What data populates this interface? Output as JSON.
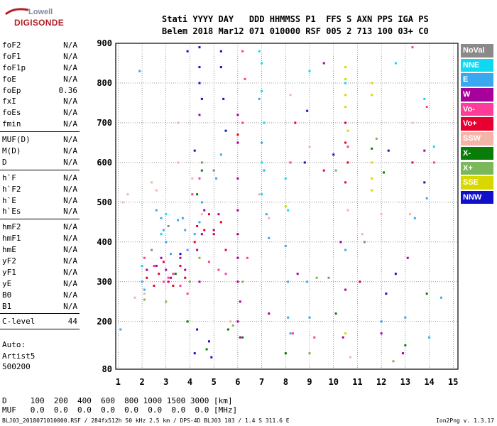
{
  "logo": {
    "top": "Lowell",
    "bottom": "DIGISONDE"
  },
  "header": {
    "line1": "Stati YYYY DAY   DDD HHMMSS P1  FFS S AXN PPS IGA PS",
    "line2": "Belem 2018 Mar12 071 010000 RSF 005 2 713 100 03+ C0"
  },
  "params": {
    "g1": [
      [
        "foF2",
        "N/A"
      ],
      [
        "foF1",
        "N/A"
      ],
      [
        "foF1p",
        "N/A"
      ],
      [
        "foE",
        "N/A"
      ],
      [
        "foEp",
        "0.36"
      ],
      [
        "fxI",
        "N/A"
      ],
      [
        "foEs",
        "N/A"
      ],
      [
        "fmin",
        "N/A"
      ]
    ],
    "g2": [
      [
        "MUF(D)",
        "N/A"
      ],
      [
        "M(D)",
        "N/A"
      ],
      [
        "D",
        "N/A"
      ]
    ],
    "g3": [
      [
        "h`F",
        "N/A"
      ],
      [
        "h`F2",
        "N/A"
      ],
      [
        "h`E",
        "N/A"
      ],
      [
        "h`Es",
        "N/A"
      ]
    ],
    "g4": [
      [
        "hmF2",
        "N/A"
      ],
      [
        "hmF1",
        "N/A"
      ],
      [
        "hmE",
        "N/A"
      ],
      [
        "yF2",
        "N/A"
      ],
      [
        "yF1",
        "N/A"
      ],
      [
        "yE",
        "N/A"
      ],
      [
        "B0",
        "N/A"
      ],
      [
        "B1",
        "N/A"
      ]
    ],
    "g5": [
      [
        "C-level",
        "44"
      ]
    ]
  },
  "auto": {
    "l1": "Auto:",
    "l2": "Artist5",
    "l3": "500200"
  },
  "legend": [
    {
      "label": "NoVal",
      "color": "#8a8a8a"
    },
    {
      "label": "NNE",
      "color": "#10d8f0"
    },
    {
      "label": "E",
      "color": "#3aa8f0"
    },
    {
      "label": "W",
      "color": "#a8009a"
    },
    {
      "label": "Vo-",
      "color": "#ff3c9a"
    },
    {
      "label": "Vo+",
      "color": "#e80030"
    },
    {
      "label": "SSW",
      "color": "#f4b4a8"
    },
    {
      "label": "X-",
      "color": "#0a7c0a"
    },
    {
      "label": "X+",
      "color": "#7ab85a"
    },
    {
      "label": "SSE",
      "color": "#d8d800"
    },
    {
      "label": "NNW",
      "color": "#1010c8"
    }
  ],
  "chart_data": {
    "type": "scatter",
    "title": "",
    "xlabel": "",
    "ylabel": "",
    "x_ticks": [
      "1",
      "2",
      "3",
      "4",
      "5",
      "6",
      "7",
      "8",
      "9",
      "10",
      "11",
      "12",
      "13",
      "14",
      "15"
    ],
    "y_ticks": [
      "80",
      "200",
      "300",
      "400",
      "500",
      "600",
      "700",
      "800",
      "900"
    ],
    "xlim": [
      0.9,
      15.2
    ],
    "ylim": [
      80,
      900
    ],
    "grid": true,
    "series": [
      {
        "name": "NNE",
        "color": "#10d8f0",
        "points": [
          [
            6.9,
            880
          ],
          [
            7.0,
            850
          ],
          [
            7.0,
            780
          ],
          [
            7.1,
            700
          ],
          [
            7.0,
            600
          ],
          [
            7.0,
            520
          ],
          [
            8.0,
            560
          ],
          [
            8.1,
            480
          ],
          [
            9.0,
            830
          ],
          [
            10.5,
            800
          ],
          [
            12.6,
            850
          ],
          [
            13.8,
            760
          ],
          [
            14.2,
            640
          ],
          [
            2.0,
            340
          ],
          [
            2.8,
            420
          ],
          [
            3.0,
            470
          ]
        ]
      },
      {
        "name": "E",
        "color": "#3aa8f0",
        "points": [
          [
            2.0,
            300
          ],
          [
            2.1,
            280
          ],
          [
            2.6,
            480
          ],
          [
            2.8,
            460
          ],
          [
            2.9,
            430
          ],
          [
            3.0,
            400
          ],
          [
            3.2,
            370
          ],
          [
            3.5,
            455
          ],
          [
            3.7,
            460
          ],
          [
            3.8,
            430
          ],
          [
            3.9,
            380
          ],
          [
            4.2,
            420
          ],
          [
            4.4,
            450
          ],
          [
            4.5,
            500
          ],
          [
            5.1,
            560
          ],
          [
            5.3,
            620
          ],
          [
            6.9,
            760
          ],
          [
            7.0,
            650
          ],
          [
            7.1,
            580
          ],
          [
            7.2,
            470
          ],
          [
            7.3,
            410
          ],
          [
            8.0,
            390
          ],
          [
            8.1,
            300
          ],
          [
            8.1,
            210
          ],
          [
            8.2,
            170
          ],
          [
            8.9,
            300
          ],
          [
            9.0,
            210
          ],
          [
            10.5,
            380
          ],
          [
            12.0,
            200
          ],
          [
            13.0,
            210
          ],
          [
            13.4,
            460
          ],
          [
            13.9,
            510
          ],
          [
            14.0,
            160
          ],
          [
            1.1,
            180
          ],
          [
            1.9,
            830
          ],
          [
            14.5,
            260
          ]
        ]
      },
      {
        "name": "W",
        "color": "#a8009a",
        "points": [
          [
            2.2,
            330
          ],
          [
            2.6,
            340
          ],
          [
            2.8,
            360
          ],
          [
            3.0,
            330
          ],
          [
            3.2,
            310
          ],
          [
            3.6,
            360
          ],
          [
            3.8,
            330
          ],
          [
            4.3,
            380
          ],
          [
            4.4,
            300
          ],
          [
            4.5,
            420
          ],
          [
            4.6,
            480
          ],
          [
            5.0,
            430
          ],
          [
            5.2,
            470
          ],
          [
            6.0,
            720
          ],
          [
            6.0,
            650
          ],
          [
            6.0,
            560
          ],
          [
            6.0,
            480
          ],
          [
            6.0,
            420
          ],
          [
            6.0,
            360
          ],
          [
            6.0,
            300
          ],
          [
            6.1,
            250
          ],
          [
            6.0,
            200
          ],
          [
            6.1,
            160
          ],
          [
            7.3,
            220
          ],
          [
            8.5,
            320
          ],
          [
            9.6,
            850
          ],
          [
            10.3,
            400
          ],
          [
            10.5,
            280
          ],
          [
            10.4,
            160
          ],
          [
            12.0,
            170
          ],
          [
            12.9,
            120
          ],
          [
            13.8,
            630
          ],
          [
            13.1,
            360
          ],
          [
            4.4,
            720
          ]
        ]
      },
      {
        "name": "Vo-",
        "color": "#ff3c9a",
        "points": [
          [
            2.1,
            360
          ],
          [
            2.5,
            340
          ],
          [
            2.9,
            300
          ],
          [
            3.1,
            310
          ],
          [
            3.3,
            320
          ],
          [
            3.6,
            290
          ],
          [
            3.9,
            270
          ],
          [
            4.1,
            520
          ],
          [
            4.4,
            560
          ],
          [
            4.8,
            350
          ],
          [
            5.2,
            330
          ],
          [
            5.5,
            320
          ],
          [
            6.2,
            700
          ],
          [
            6.3,
            810
          ],
          [
            6.4,
            360
          ],
          [
            8.2,
            600
          ],
          [
            8.3,
            170
          ],
          [
            9.2,
            160
          ],
          [
            10.6,
            640
          ],
          [
            13.9,
            740
          ],
          [
            14.2,
            600
          ],
          [
            13.3,
            890
          ],
          [
            6.2,
            880
          ]
        ]
      },
      {
        "name": "Vo+",
        "color": "#e80030",
        "points": [
          [
            2.2,
            310
          ],
          [
            2.5,
            290
          ],
          [
            2.7,
            320
          ],
          [
            2.9,
            350
          ],
          [
            3.1,
            300
          ],
          [
            3.3,
            290
          ],
          [
            3.6,
            340
          ],
          [
            3.8,
            310
          ],
          [
            4.2,
            400
          ],
          [
            4.3,
            440
          ],
          [
            4.6,
            430
          ],
          [
            4.8,
            470
          ],
          [
            5.0,
            420
          ],
          [
            5.3,
            450
          ],
          [
            5.5,
            380
          ],
          [
            6.0,
            670
          ],
          [
            10.5,
            700
          ],
          [
            10.5,
            650
          ],
          [
            10.6,
            600
          ],
          [
            10.5,
            550
          ],
          [
            11.1,
            300
          ],
          [
            9.6,
            580
          ],
          [
            8.4,
            700
          ],
          [
            13.3,
            600
          ]
        ]
      },
      {
        "name": "SSW",
        "color": "#f4b4a8",
        "points": [
          [
            1.2,
            500
          ],
          [
            1.4,
            520
          ],
          [
            1.7,
            260
          ],
          [
            2.1,
            270
          ],
          [
            2.4,
            550
          ],
          [
            2.6,
            530
          ],
          [
            3.5,
            700
          ],
          [
            3.5,
            600
          ],
          [
            4.1,
            560
          ],
          [
            4.5,
            470
          ],
          [
            5.7,
            200
          ],
          [
            6.9,
            520
          ],
          [
            7.3,
            460
          ],
          [
            8.2,
            770
          ],
          [
            9.0,
            640
          ],
          [
            10.6,
            480
          ],
          [
            11.2,
            420
          ],
          [
            13.2,
            470
          ],
          [
            13.3,
            700
          ],
          [
            3.4,
            320
          ],
          [
            12.0,
            470
          ],
          [
            10.7,
            110
          ]
        ]
      },
      {
        "name": "X-",
        "color": "#0a7c0a",
        "points": [
          [
            3.4,
            320
          ],
          [
            3.9,
            200
          ],
          [
            4.3,
            520
          ],
          [
            4.5,
            580
          ],
          [
            5.6,
            180
          ],
          [
            6.2,
            160
          ],
          [
            8.0,
            120
          ],
          [
            10.1,
            220
          ],
          [
            11.6,
            635
          ],
          [
            12.1,
            575
          ],
          [
            13.0,
            140
          ],
          [
            13.9,
            270
          ],
          [
            4.7,
            130
          ]
        ]
      },
      {
        "name": "X+",
        "color": "#7ab85a",
        "points": [
          [
            2.1,
            255
          ],
          [
            3.0,
            250
          ],
          [
            4.0,
            300
          ],
          [
            4.4,
            360
          ],
          [
            5.8,
            190
          ],
          [
            6.2,
            300
          ],
          [
            9.0,
            120
          ],
          [
            10.1,
            580
          ],
          [
            11.8,
            660
          ],
          [
            12.5,
            100
          ],
          [
            9.3,
            310
          ]
        ]
      },
      {
        "name": "SSE",
        "color": "#d8d800",
        "points": [
          [
            10.5,
            840
          ],
          [
            10.5,
            810
          ],
          [
            10.5,
            770
          ],
          [
            10.5,
            740
          ],
          [
            10.5,
            170
          ],
          [
            11.6,
            800
          ],
          [
            11.6,
            770
          ],
          [
            11.6,
            600
          ],
          [
            11.6,
            560
          ],
          [
            11.6,
            530
          ],
          [
            10.6,
            680
          ],
          [
            8.0,
            490
          ]
        ]
      },
      {
        "name": "NNW",
        "color": "#1010c8",
        "points": [
          [
            3.9,
            880
          ],
          [
            4.4,
            890
          ],
          [
            4.4,
            840
          ],
          [
            4.4,
            800
          ],
          [
            4.5,
            760
          ],
          [
            5.3,
            880
          ],
          [
            5.3,
            840
          ],
          [
            5.4,
            760
          ],
          [
            5.5,
            680
          ],
          [
            4.3,
            180
          ],
          [
            4.2,
            120
          ],
          [
            4.8,
            150
          ],
          [
            4.9,
            110
          ],
          [
            8.9,
            730
          ],
          [
            8.8,
            600
          ],
          [
            10.0,
            620
          ],
          [
            12.3,
            630
          ],
          [
            12.6,
            320
          ],
          [
            13.8,
            550
          ],
          [
            12.2,
            270
          ],
          [
            3.6,
            370
          ],
          [
            4.2,
            630
          ]
        ]
      },
      {
        "name": "NoVal",
        "color": "#8a8a8a",
        "points": [
          [
            2.4,
            380
          ],
          [
            3.1,
            440
          ],
          [
            4.5,
            600
          ],
          [
            5.0,
            580
          ],
          [
            9.8,
            310
          ],
          [
            11.3,
            400
          ]
        ]
      }
    ]
  },
  "dtable": {
    "row1": "D     100  200  400  600  800 1000 1500 3000 [km]",
    "row2": "MUF   0.0  0.0  0.0  0.0  0.0  0.0  0.0  0.0 [MHz]"
  },
  "footer": {
    "text": "BLJ03_2018071010000.RSF / 284fx512h 50 kHz 2.5 km / DPS-4D BLJ03 103 / 1.4 S 311.6 E",
    "version": "Ion2Png v. 1.3.17"
  }
}
